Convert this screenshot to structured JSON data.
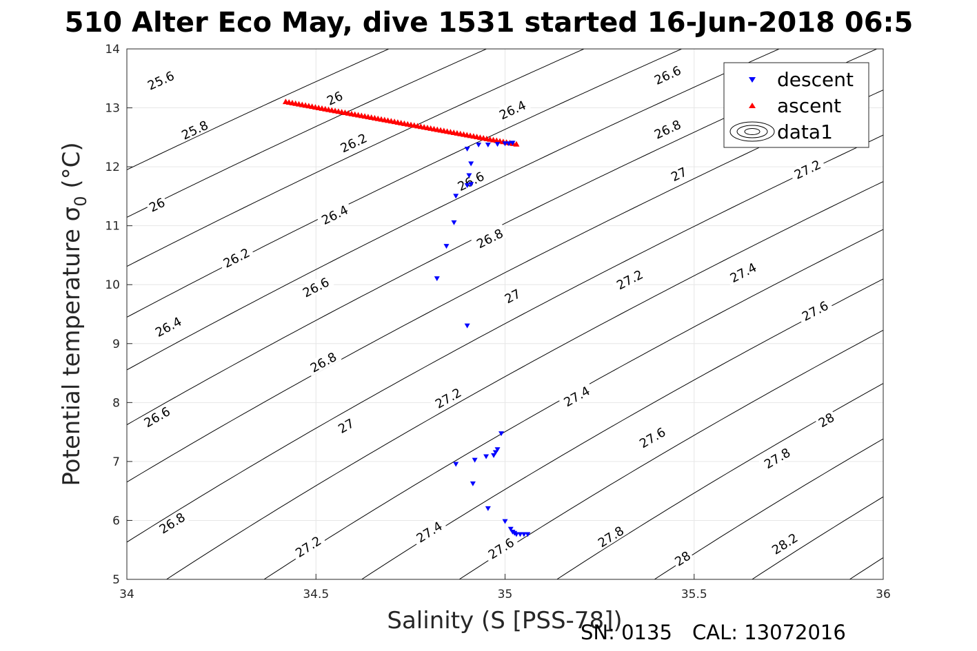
{
  "chart_data": {
    "type": "scatter",
    "title": "510 Alter Eco May, dive 1531 started 16-Jun-2018 06:5",
    "xlabel": "Salinity (S [PSS-78])",
    "ylabel": "Potential temperature",
    "ylabel_symbol": "σ",
    "ylabel_subscript": "0",
    "ylabel_unit": "(°C)",
    "xlim": [
      34,
      36
    ],
    "ylim": [
      5,
      14
    ],
    "xticks": [
      34,
      34.5,
      35,
      35.5,
      36
    ],
    "xtick_labels": [
      "34",
      "34.5",
      "35",
      "35.5",
      "36"
    ],
    "yticks": [
      5,
      6,
      7,
      8,
      9,
      10,
      11,
      12,
      13,
      14
    ],
    "ytick_labels": [
      "5",
      "6",
      "7",
      "8",
      "9",
      "10",
      "11",
      "12",
      "13",
      "14"
    ],
    "grid": true,
    "legend_position": "top-right",
    "series": [
      {
        "name": "descent",
        "marker": "triangle-down",
        "color": "#0000ff",
        "x": [
          34.9,
          34.93,
          34.955,
          34.98,
          35.0,
          35.01,
          35.02,
          34.91,
          34.905,
          34.91,
          34.9,
          34.87,
          34.865,
          34.845,
          34.82,
          34.9,
          34.99,
          34.98,
          34.975,
          34.97,
          34.95,
          34.92,
          34.87,
          34.915,
          34.955,
          35.0,
          35.015,
          35.02,
          35.025,
          35.03,
          35.04,
          35.05,
          35.06
        ],
        "y": [
          12.3,
          12.37,
          12.37,
          12.38,
          12.39,
          12.39,
          12.4,
          12.05,
          11.85,
          11.7,
          11.68,
          11.5,
          11.05,
          10.65,
          10.1,
          9.3,
          7.47,
          7.2,
          7.15,
          7.1,
          7.08,
          7.02,
          6.95,
          6.62,
          6.2,
          5.98,
          5.85,
          5.8,
          5.78,
          5.76,
          5.76,
          5.76,
          5.76
        ]
      },
      {
        "name": "ascent",
        "marker": "triangle-up",
        "color": "#ff0000",
        "x_range": [
          34.42,
          35.03
        ],
        "y_range": [
          13.11,
          12.39
        ]
      },
      {
        "name": "data1",
        "type": "contour",
        "color": "#000000",
        "levels": [
          25.6,
          25.8,
          26,
          26.2,
          26.4,
          26.6,
          26.8,
          27,
          27.2,
          27.4,
          27.6,
          27.8,
          28,
          28.2
        ]
      }
    ]
  },
  "contour_labels": [
    {
      "text": "25.6",
      "x": 34.09,
      "y": 13.46
    },
    {
      "text": "25.8",
      "x": 34.18,
      "y": 12.62
    },
    {
      "text": "26",
      "x": 34.55,
      "y": 13.16
    },
    {
      "text": "26",
      "x": 34.08,
      "y": 11.35
    },
    {
      "text": "26.2",
      "x": 34.29,
      "y": 10.45
    },
    {
      "text": "26.2",
      "x": 34.6,
      "y": 12.4
    },
    {
      "text": "26.4",
      "x": 35.02,
      "y": 12.96
    },
    {
      "text": "26.4",
      "x": 34.55,
      "y": 11.18
    },
    {
      "text": "26.4",
      "x": 34.11,
      "y": 9.28
    },
    {
      "text": "26.6",
      "x": 35.43,
      "y": 13.55
    },
    {
      "text": "26.6",
      "x": 34.91,
      "y": 11.75
    },
    {
      "text": "26.6",
      "x": 34.5,
      "y": 9.95
    },
    {
      "text": "26.6",
      "x": 34.08,
      "y": 7.75
    },
    {
      "text": "26.8",
      "x": 35.43,
      "y": 12.63
    },
    {
      "text": "26.8",
      "x": 34.96,
      "y": 10.78
    },
    {
      "text": "26.8",
      "x": 34.52,
      "y": 8.68
    },
    {
      "text": "26.8",
      "x": 34.12,
      "y": 5.95
    },
    {
      "text": "27",
      "x": 35.46,
      "y": 11.87
    },
    {
      "text": "27",
      "x": 35.02,
      "y": 9.8
    },
    {
      "text": "27",
      "x": 34.58,
      "y": 7.6
    },
    {
      "text": "27.2",
      "x": 35.8,
      "y": 11.95
    },
    {
      "text": "27.2",
      "x": 35.33,
      "y": 10.08
    },
    {
      "text": "27.2",
      "x": 34.85,
      "y": 8.07
    },
    {
      "text": "27.2",
      "x": 34.48,
      "y": 5.55
    },
    {
      "text": "27.4",
      "x": 35.63,
      "y": 10.2
    },
    {
      "text": "27.4",
      "x": 35.19,
      "y": 8.1
    },
    {
      "text": "27.4",
      "x": 34.8,
      "y": 5.8
    },
    {
      "text": "27.6",
      "x": 35.82,
      "y": 9.55
    },
    {
      "text": "27.6",
      "x": 35.39,
      "y": 7.4
    },
    {
      "text": "27.6",
      "x": 34.99,
      "y": 5.52
    },
    {
      "text": "27.8",
      "x": 35.72,
      "y": 7.05
    },
    {
      "text": "27.8",
      "x": 35.28,
      "y": 5.72
    },
    {
      "text": "28",
      "x": 35.85,
      "y": 7.7
    },
    {
      "text": "28",
      "x": 35.47,
      "y": 5.35
    },
    {
      "text": "28.2",
      "x": 35.74,
      "y": 5.6
    }
  ],
  "footer": {
    "serial": "SN: 0135",
    "calibration": "CAL: 13072016"
  },
  "colors": {
    "descent": "#0000ff",
    "ascent": "#ff0000",
    "contour": "#000000",
    "grid": "#e6e6e6",
    "axis": "#262626"
  }
}
